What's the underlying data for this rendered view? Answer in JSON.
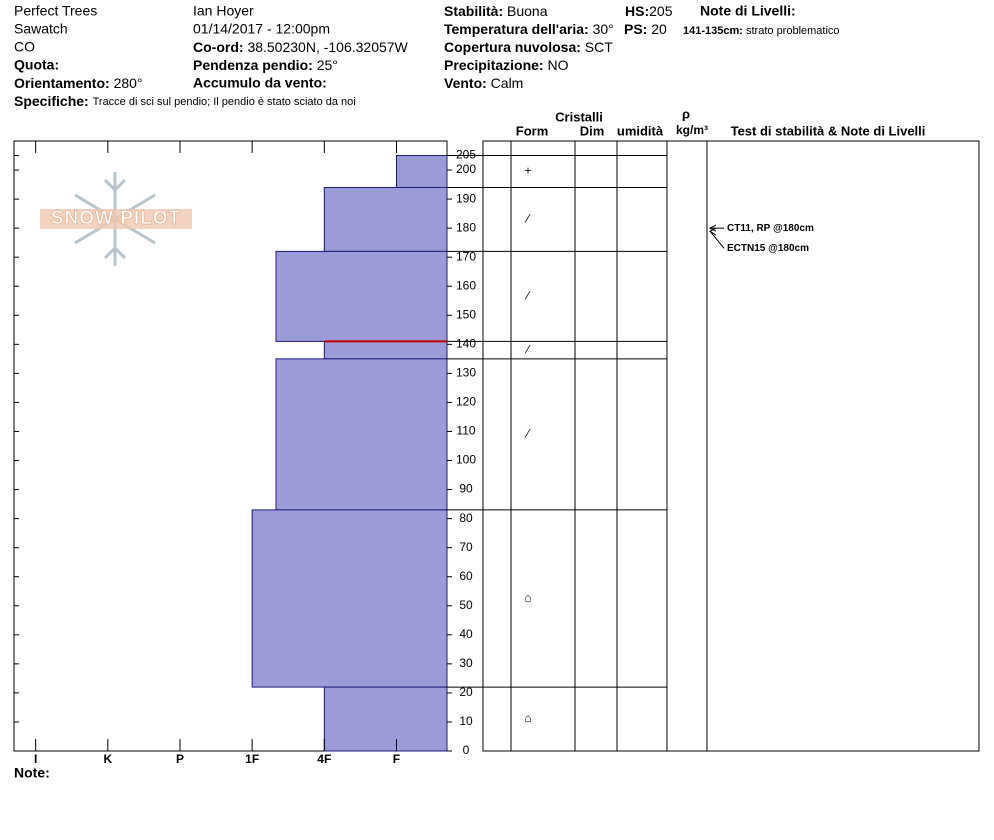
{
  "header": {
    "col1": [
      "Perfect Trees",
      "Sawatch",
      "CO"
    ],
    "quota": {
      "label": "Quota:"
    },
    "orientamento": {
      "label": "Orientamento:",
      "value": "280°"
    },
    "observer": "Ian Hoyer",
    "datetime": "01/14/2017 - 12:00pm",
    "coord": {
      "label": "Co-ord:",
      "value": "38.50230N, -106.32057W"
    },
    "pendenza": {
      "label": "Pendenza pendio:",
      "value": "25°"
    },
    "accumulo": {
      "label": "Accumulo da vento:"
    },
    "stabilita": {
      "label": "Stabilità:",
      "value": "Buona"
    },
    "temperatura": {
      "label": "Temperatura dell'aria:",
      "value": "30°"
    },
    "copertura": {
      "label": "Copertura nuvolosa:",
      "value": "SCT"
    },
    "precipitazione": {
      "label": "Precipitazione:",
      "value": "NO"
    },
    "vento": {
      "label": "Vento:",
      "value": "Calm"
    },
    "hs": {
      "label": "HS:",
      "value": "205"
    },
    "ps": {
      "label": "PS:",
      "value": "20"
    },
    "note_livelli": "Note di Livelli:",
    "layer_note": {
      "label": "141-135cm:",
      "value": "strato problematico"
    },
    "specifiche": {
      "label": "Specifiche:",
      "value": "Tracce di sci sul pendio;  Il pendio è stato sciato da noi"
    }
  },
  "logo": "SNOW PILOT",
  "note": "Note:",
  "table_header": {
    "cristalli": "Cristalli",
    "form": "Form",
    "dim": "Dim",
    "umidita": "umidità",
    "rho": "ρ",
    "density_unit": "kg/m³",
    "tests": "Test di stabilità & Note di Livelli"
  },
  "chart_data": {
    "type": "snow-profile",
    "ylim": [
      0,
      210
    ],
    "yticks": [
      0,
      10,
      20,
      30,
      40,
      50,
      60,
      70,
      80,
      90,
      100,
      110,
      120,
      130,
      140,
      150,
      160,
      170,
      180,
      190,
      200,
      205
    ],
    "xlim": [
      6.3,
      0.3
    ],
    "xticks": [
      {
        "value": 6,
        "label": "I"
      },
      {
        "value": 5,
        "label": "K"
      },
      {
        "value": 4,
        "label": "P"
      },
      {
        "value": 3,
        "label": "1F"
      },
      {
        "value": 2,
        "label": "4F"
      },
      {
        "value": 1,
        "label": "F"
      }
    ],
    "color": "#9b9bd7",
    "layers": [
      {
        "top": 205,
        "bottom": 194,
        "hardness": 1,
        "form": "+"
      },
      {
        "top": 194,
        "bottom": 172,
        "hardness": 2,
        "form": "⁄"
      },
      {
        "top": 172,
        "bottom": 141,
        "hardness": 2.67,
        "form": "⁄"
      },
      {
        "top": 141,
        "bottom": 135,
        "hardness": 2,
        "form": "⁄"
      },
      {
        "top": 135,
        "bottom": 83,
        "hardness": 2.67,
        "form": "⁄"
      },
      {
        "top": 83,
        "bottom": 22,
        "hardness": 3,
        "form": "⌂"
      },
      {
        "top": 22,
        "bottom": 0,
        "hardness": 2,
        "form": "⌂"
      }
    ],
    "problem_depth": 141,
    "tests": [
      {
        "label": "CT11, RP @180cm",
        "depth": 180
      },
      {
        "label": "ECTN15 @180cm",
        "depth": 180
      }
    ]
  }
}
